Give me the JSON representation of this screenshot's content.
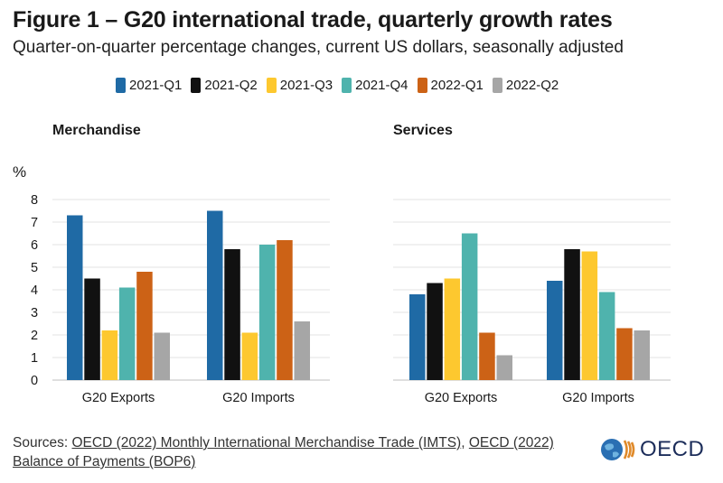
{
  "title": "Figure 1 – G20 international trade, quarterly growth rates",
  "subtitle": "Quarter-on-quarter percentage changes, current US dollars, seasonally adjusted",
  "legend": [
    {
      "label": "2021-Q1",
      "color": "#1f6aa5"
    },
    {
      "label": "2021-Q2",
      "color": "#111111"
    },
    {
      "label": "2021-Q3",
      "color": "#fdc82f"
    },
    {
      "label": "2021-Q4",
      "color": "#4fb3ad"
    },
    {
      "label": "2022-Q1",
      "color": "#cc6216"
    },
    {
      "label": "2022-Q2",
      "color": "#a6a6a6"
    }
  ],
  "chart_data": {
    "type": "bar",
    "ylabel": "%",
    "ylim": [
      0,
      8
    ],
    "yticks": [
      "0",
      "1",
      "2",
      "3",
      "4",
      "5",
      "6",
      "7",
      "8"
    ],
    "panels": [
      {
        "title": "Merchandise",
        "categories": [
          "G20 Exports",
          "G20 Imports"
        ],
        "series": [
          {
            "name": "2021-Q1",
            "values": [
              7.3,
              7.5
            ]
          },
          {
            "name": "2021-Q2",
            "values": [
              4.5,
              5.8
            ]
          },
          {
            "name": "2021-Q3",
            "values": [
              2.2,
              2.1
            ]
          },
          {
            "name": "2021-Q4",
            "values": [
              4.1,
              6.0
            ]
          },
          {
            "name": "2022-Q1",
            "values": [
              4.8,
              6.2
            ]
          },
          {
            "name": "2022-Q2",
            "values": [
              2.1,
              2.6
            ]
          }
        ]
      },
      {
        "title": "Services",
        "categories": [
          "G20 Exports",
          "G20 Imports"
        ],
        "series": [
          {
            "name": "2021-Q1",
            "values": [
              3.8,
              4.4
            ]
          },
          {
            "name": "2021-Q2",
            "values": [
              4.3,
              5.8
            ]
          },
          {
            "name": "2021-Q3",
            "values": [
              4.5,
              5.7
            ]
          },
          {
            "name": "2021-Q4",
            "values": [
              6.5,
              3.9
            ]
          },
          {
            "name": "2022-Q1",
            "values": [
              2.1,
              2.3
            ]
          },
          {
            "name": "2022-Q2",
            "values": [
              1.1,
              2.2
            ]
          }
        ]
      }
    ],
    "grid": true
  },
  "sources": {
    "prefix": "Sources: ",
    "link1": "OECD (2022) Monthly International Merchandise Trade (IMTS)",
    "separator": ", ",
    "link2": "OECD (2022) Balance of Payments (BOP6)"
  },
  "logo": {
    "text": "OECD"
  }
}
